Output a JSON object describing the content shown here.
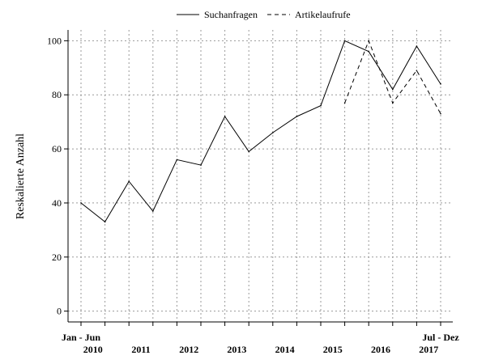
{
  "chart_data": {
    "type": "line",
    "title": "",
    "ylabel": "Reskalierte Anzahl",
    "xlabel": "",
    "ylim": [
      -4,
      104
    ],
    "yticks": [
      0,
      20,
      40,
      60,
      80,
      100
    ],
    "grid": true,
    "legend_position": "top-center",
    "x": [
      0,
      1,
      2,
      3,
      4,
      5,
      6,
      7,
      8,
      9,
      10,
      11,
      12,
      13,
      14,
      15
    ],
    "x_edge_labels": [
      "Jan - Jun",
      "Jul - Dez"
    ],
    "year_labels": [
      {
        "label": "2010",
        "x": 0.5
      },
      {
        "label": "2011",
        "x": 2.5
      },
      {
        "label": "2012",
        "x": 4.5
      },
      {
        "label": "2013",
        "x": 6.5
      },
      {
        "label": "2014",
        "x": 8.5
      },
      {
        "label": "2015",
        "x": 10.5
      },
      {
        "label": "2016",
        "x": 12.5
      },
      {
        "label": "2017",
        "x": 14.5
      }
    ],
    "series": [
      {
        "name": "Suchanfragen",
        "style": "solid",
        "color": "#000000",
        "values": [
          40,
          33,
          48,
          37,
          56,
          54,
          72,
          59,
          66,
          72,
          76,
          100,
          96,
          82,
          98,
          84
        ]
      },
      {
        "name": "Artikelaufrufe",
        "style": "dashed",
        "color": "#000000",
        "values": [
          null,
          null,
          null,
          null,
          null,
          null,
          null,
          null,
          null,
          null,
          null,
          77,
          100,
          77,
          89,
          73
        ]
      }
    ]
  }
}
